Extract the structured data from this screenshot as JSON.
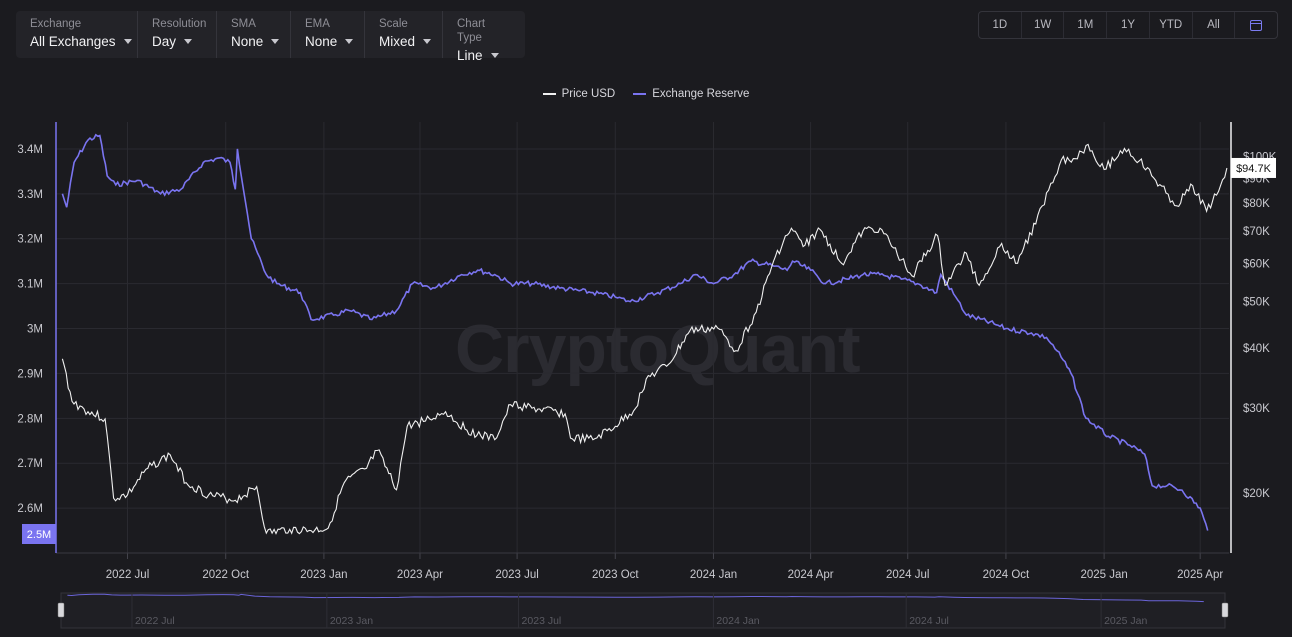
{
  "controls": [
    {
      "label": "Exchange",
      "value": "All Exchanges"
    },
    {
      "label": "Resolution",
      "value": "Day"
    },
    {
      "label": "SMA",
      "value": "None"
    },
    {
      "label": "EMA",
      "value": "None"
    },
    {
      "label": "Scale",
      "value": "Mixed"
    },
    {
      "label": "Chart Type",
      "value": "Line"
    }
  ],
  "ranges": [
    "1D",
    "1W",
    "1M",
    "1Y",
    "YTD",
    "All"
  ],
  "watermark": "CryptoQuant",
  "chart_data": {
    "type": "line",
    "colors": {
      "price": "#f0f0f0",
      "reserve": "#7a74f0"
    },
    "series": [
      {
        "name": "Price USD",
        "axis": "right",
        "scale": "log",
        "points": [
          [
            "2022-05-01",
            38000
          ],
          [
            "2022-05-10",
            31000
          ],
          [
            "2022-05-25",
            29500
          ],
          [
            "2022-06-10",
            28500
          ],
          [
            "2022-06-18",
            19500
          ],
          [
            "2022-07-01",
            19800
          ],
          [
            "2022-07-20",
            22500
          ],
          [
            "2022-08-10",
            24000
          ],
          [
            "2022-08-25",
            21000
          ],
          [
            "2022-09-15",
            19800
          ],
          [
            "2022-10-10",
            19300
          ],
          [
            "2022-10-30",
            20600
          ],
          [
            "2022-11-08",
            16500
          ],
          [
            "2022-11-30",
            16800
          ],
          [
            "2022-12-20",
            16700
          ],
          [
            "2023-01-05",
            16900
          ],
          [
            "2023-01-20",
            21000
          ],
          [
            "2023-02-10",
            22500
          ],
          [
            "2023-02-20",
            24500
          ],
          [
            "2023-03-10",
            20300
          ],
          [
            "2023-03-20",
            27500
          ],
          [
            "2023-04-10",
            28500
          ],
          [
            "2023-04-25",
            29500
          ],
          [
            "2023-05-15",
            27000
          ],
          [
            "2023-06-10",
            25800
          ],
          [
            "2023-06-25",
            30500
          ],
          [
            "2023-07-15",
            30000
          ],
          [
            "2023-08-15",
            29200
          ],
          [
            "2023-08-20",
            26000
          ],
          [
            "2023-09-10",
            25800
          ],
          [
            "2023-10-01",
            27500
          ],
          [
            "2023-10-20",
            30000
          ],
          [
            "2023-10-30",
            34500
          ],
          [
            "2023-11-20",
            37000
          ],
          [
            "2023-12-10",
            43500
          ],
          [
            "2024-01-05",
            44000
          ],
          [
            "2024-01-22",
            39500
          ],
          [
            "2024-02-10",
            47500
          ],
          [
            "2024-02-28",
            62000
          ],
          [
            "2024-03-14",
            71000
          ],
          [
            "2024-03-25",
            65000
          ],
          [
            "2024-04-10",
            70500
          ],
          [
            "2024-04-30",
            60000
          ],
          [
            "2024-05-20",
            70000
          ],
          [
            "2024-06-05",
            71000
          ],
          [
            "2024-06-25",
            61000
          ],
          [
            "2024-07-05",
            56500
          ],
          [
            "2024-07-29",
            68500
          ],
          [
            "2024-08-05",
            54000
          ],
          [
            "2024-08-25",
            63000
          ],
          [
            "2024-09-06",
            54000
          ],
          [
            "2024-09-27",
            66000
          ],
          [
            "2024-10-10",
            60000
          ],
          [
            "2024-10-29",
            72500
          ],
          [
            "2024-11-12",
            88000
          ],
          [
            "2024-11-22",
            98500
          ],
          [
            "2024-12-05",
            99000
          ],
          [
            "2024-12-17",
            106000
          ],
          [
            "2025-01-01",
            94000
          ],
          [
            "2025-01-20",
            104000
          ],
          [
            "2025-02-03",
            98000
          ],
          [
            "2025-02-28",
            84000
          ],
          [
            "2025-03-10",
            79000
          ],
          [
            "2025-03-25",
            87000
          ],
          [
            "2025-04-07",
            77000
          ],
          [
            "2025-04-20",
            87000
          ],
          [
            "2025-04-26",
            94700
          ]
        ]
      },
      {
        "name": "Exchange Reserve",
        "axis": "left",
        "points": [
          [
            "2022-05-01",
            3.3
          ],
          [
            "2022-05-05",
            3.27
          ],
          [
            "2022-05-12",
            3.37
          ],
          [
            "2022-05-25",
            3.42
          ],
          [
            "2022-06-05",
            3.43
          ],
          [
            "2022-06-12",
            3.34
          ],
          [
            "2022-06-20",
            3.32
          ],
          [
            "2022-07-10",
            3.33
          ],
          [
            "2022-08-01",
            3.3
          ],
          [
            "2022-08-20",
            3.31
          ],
          [
            "2022-09-10",
            3.37
          ],
          [
            "2022-09-25",
            3.38
          ],
          [
            "2022-10-05",
            3.37
          ],
          [
            "2022-10-10",
            3.31
          ],
          [
            "2022-10-12",
            3.4
          ],
          [
            "2022-10-25",
            3.2
          ],
          [
            "2022-11-08",
            3.12
          ],
          [
            "2022-11-18",
            3.1
          ],
          [
            "2022-12-10",
            3.08
          ],
          [
            "2022-12-20",
            3.02
          ],
          [
            "2023-01-10",
            3.03
          ],
          [
            "2023-01-25",
            3.04
          ],
          [
            "2023-02-15",
            3.02
          ],
          [
            "2023-03-10",
            3.04
          ],
          [
            "2023-03-25",
            3.1
          ],
          [
            "2023-04-15",
            3.09
          ],
          [
            "2023-05-10",
            3.12
          ],
          [
            "2023-05-25",
            3.13
          ],
          [
            "2023-06-10",
            3.12
          ],
          [
            "2023-06-25",
            3.1
          ],
          [
            "2023-07-15",
            3.1
          ],
          [
            "2023-08-10",
            3.09
          ],
          [
            "2023-09-10",
            3.08
          ],
          [
            "2023-10-01",
            3.07
          ],
          [
            "2023-10-15",
            3.06
          ],
          [
            "2023-11-10",
            3.08
          ],
          [
            "2023-12-01",
            3.1
          ],
          [
            "2023-12-15",
            3.12
          ],
          [
            "2024-01-01",
            3.1
          ],
          [
            "2024-01-20",
            3.12
          ],
          [
            "2024-02-05",
            3.15
          ],
          [
            "2024-02-25",
            3.14
          ],
          [
            "2024-03-10",
            3.13
          ],
          [
            "2024-03-15",
            3.15
          ],
          [
            "2024-04-01",
            3.13
          ],
          [
            "2024-04-15",
            3.1
          ],
          [
            "2024-05-05",
            3.11
          ],
          [
            "2024-05-20",
            3.12
          ],
          [
            "2024-06-05",
            3.12
          ],
          [
            "2024-06-25",
            3.11
          ],
          [
            "2024-07-10",
            3.1
          ],
          [
            "2024-07-28",
            3.08
          ],
          [
            "2024-08-01",
            3.12
          ],
          [
            "2024-08-15",
            3.07
          ],
          [
            "2024-08-25",
            3.03
          ],
          [
            "2024-09-20",
            3.01
          ],
          [
            "2024-10-01",
            3.0
          ],
          [
            "2024-10-25",
            2.99
          ],
          [
            "2024-11-08",
            2.98
          ],
          [
            "2024-11-18",
            2.95
          ],
          [
            "2024-12-01",
            2.9
          ],
          [
            "2024-12-15",
            2.8
          ],
          [
            "2025-01-05",
            2.76
          ],
          [
            "2025-01-25",
            2.74
          ],
          [
            "2025-02-08",
            2.72
          ],
          [
            "2025-02-15",
            2.65
          ],
          [
            "2025-03-01",
            2.65
          ],
          [
            "2025-03-15",
            2.64
          ],
          [
            "2025-04-01",
            2.6
          ],
          [
            "2025-04-08",
            2.55
          ]
        ]
      }
    ],
    "left_axis": {
      "ticks": [
        "3.4M",
        "3.3M",
        "3.2M",
        "3.1M",
        "3M",
        "2.9M",
        "2.8M",
        "2.7M",
        "2.6M"
      ],
      "tick_values": [
        3.4,
        3.3,
        3.2,
        3.1,
        3.0,
        2.9,
        2.8,
        2.7,
        2.6
      ],
      "current_label": "2.5M"
    },
    "right_axis": {
      "ticks": [
        "$100K",
        "$90K",
        "$80K",
        "$70K",
        "$60K",
        "$50K",
        "$40K",
        "$30K",
        "$20K"
      ],
      "tick_values": [
        100000,
        90000,
        80000,
        70000,
        60000,
        50000,
        40000,
        30000,
        20000
      ],
      "current_label": "$94.7K"
    },
    "x_ticks": [
      "2022 Jul",
      "2022 Oct",
      "2023 Jan",
      "2023 Apr",
      "2023 Jul",
      "2023 Oct",
      "2024 Jan",
      "2024 Apr",
      "2024 Jul",
      "2024 Oct",
      "2025 Jan",
      "2025 Apr"
    ],
    "x_tick_dates": [
      "2022-07-01",
      "2022-10-01",
      "2023-01-01",
      "2023-04-01",
      "2023-07-01",
      "2023-10-01",
      "2024-01-01",
      "2024-04-01",
      "2024-07-01",
      "2024-10-01",
      "2025-01-01",
      "2025-04-01"
    ],
    "navigator_ticks": [
      "2022 Jul",
      "2023 Jan",
      "2023 Jul",
      "2024 Jan",
      "2024 Jul",
      "2025 Jan"
    ],
    "navigator_tick_dates": [
      "2022-07-01",
      "2023-01-01",
      "2023-07-01",
      "2024-01-01",
      "2024-07-01",
      "2025-01-01"
    ],
    "x_range": [
      "2022-04-25",
      "2025-04-28"
    ],
    "left_ylim": [
      2.5,
      3.46
    ],
    "right_ylim": [
      15000,
      118000
    ],
    "grid": true
  }
}
